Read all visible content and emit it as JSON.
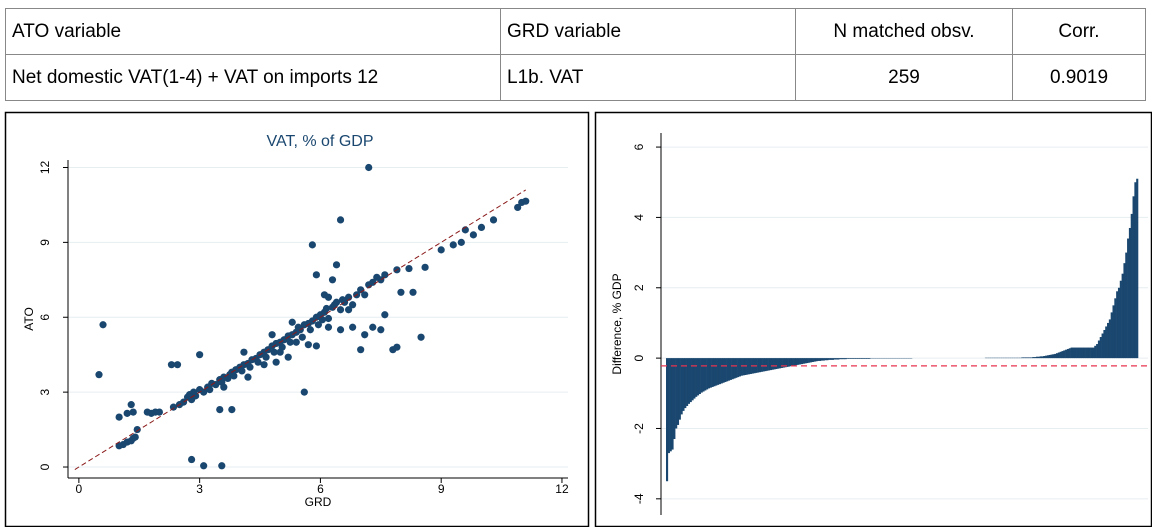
{
  "table": {
    "header": [
      "ATO variable",
      "GRD variable",
      "N matched obsv.",
      "Corr."
    ],
    "rows": [
      [
        "Net domestic VAT(1-4) + VAT on imports 12",
        "L1b. VAT",
        259,
        0.9019
      ]
    ]
  },
  "chart_data": [
    {
      "type": "scatter",
      "title": "VAT, % of GDP",
      "x_label": "GRD",
      "y_label": "ATO",
      "color": "#1a476f",
      "grid": true,
      "xlim": [
        -0.27,
        12.15
      ],
      "ylim": [
        -0.44,
        12.3
      ],
      "xticks": [
        0,
        3,
        6,
        9,
        12
      ],
      "yticks": [
        0,
        3,
        6,
        9,
        12
      ],
      "reference_line": {
        "x": [
          -0.1,
          11.1
        ],
        "y": [
          -0.1,
          11.1
        ],
        "color": "#8b1a1a"
      },
      "x": [
        0.5,
        0.6,
        1.0,
        1.1,
        1.2,
        1.3,
        1.35,
        1.4,
        1.45,
        1.0,
        1.2,
        1.3,
        1.35,
        1.7,
        1.8,
        1.9,
        2.0,
        2.3,
        2.45,
        2.35,
        2.5,
        2.6,
        2.7,
        2.75,
        2.8,
        2.85,
        2.9,
        3.0,
        3.0,
        3.1,
        3.2,
        3.25,
        3.3,
        3.4,
        3.5,
        3.55,
        3.6,
        3.7,
        3.75,
        3.8,
        3.85,
        3.9,
        4.0,
        4.05,
        4.1,
        4.2,
        4.25,
        4.3,
        4.4,
        4.45,
        4.5,
        4.6,
        4.65,
        4.7,
        4.8,
        4.85,
        4.9,
        5.0,
        5.05,
        5.1,
        5.2,
        5.25,
        5.3,
        5.4,
        5.45,
        5.5,
        5.55,
        5.6,
        5.7,
        5.75,
        5.8,
        5.9,
        5.95,
        6.0,
        6.05,
        6.1,
        6.15,
        6.2,
        6.3,
        6.35,
        6.4,
        6.5,
        6.55,
        6.6,
        6.7,
        6.8,
        6.9,
        7.0,
        7.1,
        7.2,
        7.3,
        7.4,
        7.5,
        7.6,
        7.9,
        8.2,
        8.6,
        9.0,
        9.3,
        9.5,
        9.6,
        9.8,
        10.0,
        10.3,
        10.9,
        11.0,
        11.1,
        2.8,
        3.1,
        3.55,
        3.5,
        3.8,
        5.6,
        4.9,
        5.2,
        5.7,
        5.9,
        6.5,
        6.8,
        7.0,
        7.1,
        7.3,
        7.5,
        7.8,
        7.9,
        8.5,
        8.0,
        8.3,
        7.6,
        7.2,
        6.5,
        5.8,
        6.4,
        6.1,
        6.3,
        5.9,
        6.2,
        4.1,
        4.8,
        5.3,
        6.7,
        6.2,
        5.0,
        4.2,
        3.6,
        4.6,
        5.4
      ],
      "y": [
        3.7,
        5.7,
        0.85,
        0.9,
        1.0,
        1.05,
        1.15,
        1.2,
        1.5,
        2.0,
        2.15,
        2.5,
        2.2,
        2.2,
        2.15,
        2.2,
        2.2,
        4.1,
        4.1,
        2.4,
        2.5,
        2.6,
        2.8,
        2.9,
        2.7,
        3.0,
        2.85,
        4.5,
        3.1,
        3.0,
        3.2,
        3.1,
        3.35,
        3.3,
        3.5,
        3.4,
        3.6,
        3.55,
        3.7,
        3.8,
        3.65,
        3.9,
        4.0,
        3.85,
        4.1,
        4.15,
        4.0,
        4.3,
        4.35,
        4.2,
        4.5,
        4.6,
        4.4,
        4.7,
        4.85,
        4.6,
        4.95,
        5.0,
        4.8,
        5.1,
        5.25,
        5.0,
        5.3,
        5.4,
        5.6,
        5.5,
        5.2,
        5.7,
        5.75,
        5.5,
        5.85,
        6.0,
        5.7,
        6.1,
        5.9,
        6.2,
        6.35,
        5.95,
        6.4,
        6.5,
        6.6,
        6.3,
        6.7,
        6.6,
        6.8,
        6.5,
        6.9,
        7.1,
        6.9,
        7.3,
        7.4,
        7.6,
        7.5,
        7.7,
        7.9,
        7.95,
        8.0,
        8.7,
        8.9,
        9.0,
        9.5,
        9.3,
        9.6,
        9.9,
        10.4,
        10.6,
        10.65,
        0.3,
        0.05,
        0.05,
        2.3,
        2.3,
        3.0,
        4.2,
        4.4,
        4.9,
        4.85,
        5.5,
        5.6,
        4.7,
        5.3,
        5.6,
        5.5,
        4.7,
        4.8,
        5.2,
        7.0,
        7.0,
        6.1,
        12.0,
        9.9,
        8.9,
        8.1,
        6.9,
        7.5,
        7.7,
        6.8,
        4.6,
        5.3,
        5.8,
        6.3,
        5.6,
        4.6,
        3.6,
        3.2,
        4.1,
        5.0
      ]
    },
    {
      "type": "bar",
      "y_label": "Difference, % GDP",
      "color": "#1a476f",
      "grid": true,
      "ylim": [
        -4.46,
        6.4
      ],
      "yticks": [
        -4,
        -2,
        0,
        2,
        4,
        6
      ],
      "reference_line": {
        "y": -0.22,
        "color": "#e8334f"
      },
      "values": [
        -3.5,
        -2.7,
        -2.65,
        -2.6,
        -2.3,
        -2.0,
        -1.9,
        -1.75,
        -1.6,
        -1.5,
        -1.42,
        -1.36,
        -1.3,
        -1.25,
        -1.2,
        -1.15,
        -1.1,
        -1.06,
        -1.02,
        -0.98,
        -0.95,
        -0.92,
        -0.89,
        -0.86,
        -0.84,
        -0.82,
        -0.8,
        -0.78,
        -0.76,
        -0.74,
        -0.72,
        -0.7,
        -0.68,
        -0.66,
        -0.64,
        -0.62,
        -0.6,
        -0.58,
        -0.56,
        -0.54,
        -0.52,
        -0.5,
        -0.49,
        -0.48,
        -0.47,
        -0.46,
        -0.45,
        -0.44,
        -0.43,
        -0.42,
        -0.41,
        -0.4,
        -0.39,
        -0.38,
        -0.37,
        -0.36,
        -0.35,
        -0.34,
        -0.33,
        -0.32,
        -0.31,
        -0.3,
        -0.29,
        -0.28,
        -0.27,
        -0.26,
        -0.25,
        -0.24,
        -0.23,
        -0.22,
        -0.21,
        -0.2,
        -0.19,
        -0.18,
        -0.17,
        -0.16,
        -0.15,
        -0.14,
        -0.13,
        -0.12,
        -0.11,
        -0.1,
        -0.09,
        -0.08,
        -0.08,
        -0.07,
        -0.07,
        -0.06,
        -0.06,
        -0.05,
        -0.05,
        -0.05,
        -0.04,
        -0.04,
        -0.04,
        -0.03,
        -0.03,
        -0.03,
        -0.03,
        -0.02,
        -0.02,
        -0.02,
        -0.02,
        -0.02,
        -0.02,
        -0.02,
        -0.02,
        -0.02,
        -0.02,
        -0.02,
        -0.02,
        -0.02,
        -0.01,
        -0.01,
        -0.01,
        -0.01,
        -0.01,
        -0.01,
        -0.01,
        -0.01,
        -0.01,
        -0.01,
        -0.01,
        -0.01,
        -0.01,
        -0.01,
        -0.01,
        -0.01,
        -0.01,
        -0.01,
        -0.01,
        -0.01,
        -0.01,
        -0.01,
        -0.01,
        0,
        0,
        0,
        0,
        0,
        0,
        0,
        0,
        0,
        0,
        0,
        0,
        0,
        0,
        0,
        0,
        0,
        0,
        0,
        0,
        0,
        0,
        0,
        0,
        0,
        0,
        0,
        0,
        0,
        0,
        0,
        0,
        0,
        0,
        0,
        0,
        0,
        0,
        0,
        0,
        0.01,
        0.01,
        0.01,
        0.01,
        0.01,
        0.01,
        0.01,
        0.01,
        0.01,
        0.01,
        0.01,
        0.01,
        0.01,
        0.01,
        0.01,
        0.01,
        0.01,
        0.01,
        0.01,
        0.01,
        0.02,
        0.02,
        0.02,
        0.02,
        0.02,
        0.02,
        0.03,
        0.03,
        0.04,
        0.04,
        0.05,
        0.05,
        0.06,
        0.07,
        0.08,
        0.09,
        0.1,
        0.11,
        0.12,
        0.14,
        0.16,
        0.18,
        0.2,
        0.22,
        0.24,
        0.26,
        0.28,
        0.3,
        0.3,
        0.3,
        0.3,
        0.3,
        0.3,
        0.3,
        0.3,
        0.3,
        0.3,
        0.3,
        0.3,
        0.3,
        0.35,
        0.4,
        0.5,
        0.6,
        0.7,
        0.8,
        0.9,
        1.0,
        1.1,
        1.3,
        1.5,
        1.7,
        1.9,
        2.0,
        2.2,
        2.4,
        2.7,
        3.0,
        3.4,
        3.7,
        4.1,
        4.6,
        5.0,
        5.1
      ]
    }
  ]
}
